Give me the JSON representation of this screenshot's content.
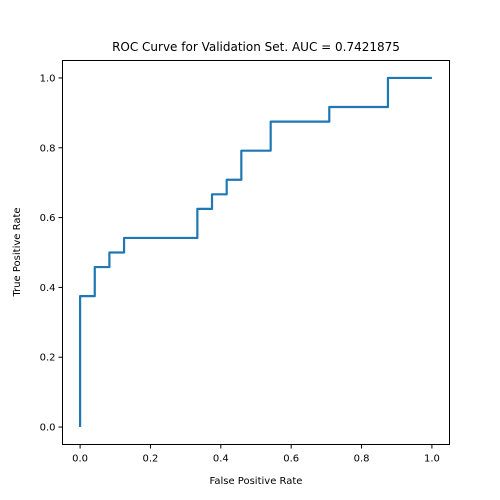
{
  "chart_data": {
    "type": "line",
    "title": "ROC Curve for Validation Set. AUC = 0.7421875",
    "xlabel": "False Positive Rate",
    "ylabel": "True Positive Rate",
    "xlim": [
      -0.05,
      1.05
    ],
    "ylim": [
      -0.05,
      1.05
    ],
    "xticks": [
      "0.0",
      "0.2",
      "0.4",
      "0.6",
      "0.8",
      "1.0"
    ],
    "yticks": [
      "0.0",
      "0.2",
      "0.4",
      "0.6",
      "0.8",
      "1.0"
    ],
    "grid": false,
    "legend": "none",
    "line_color": "#1f77b4",
    "series": [
      {
        "x": [
          0.0,
          0.0,
          0.0,
          0.0417,
          0.0417,
          0.0833,
          0.0833,
          0.125,
          0.125,
          0.3333,
          0.3333,
          0.375,
          0.375,
          0.4167,
          0.4167,
          0.4583,
          0.4583,
          0.5417,
          0.5417,
          0.7083,
          0.7083,
          0.875,
          0.875,
          1.0
        ],
        "y": [
          0.0,
          0.375,
          0.375,
          0.375,
          0.4583,
          0.4583,
          0.5,
          0.5,
          0.5417,
          0.5417,
          0.625,
          0.625,
          0.6667,
          0.6667,
          0.7083,
          0.7083,
          0.7917,
          0.7917,
          0.875,
          0.875,
          0.9167,
          0.9167,
          1.0,
          1.0
        ]
      }
    ]
  }
}
